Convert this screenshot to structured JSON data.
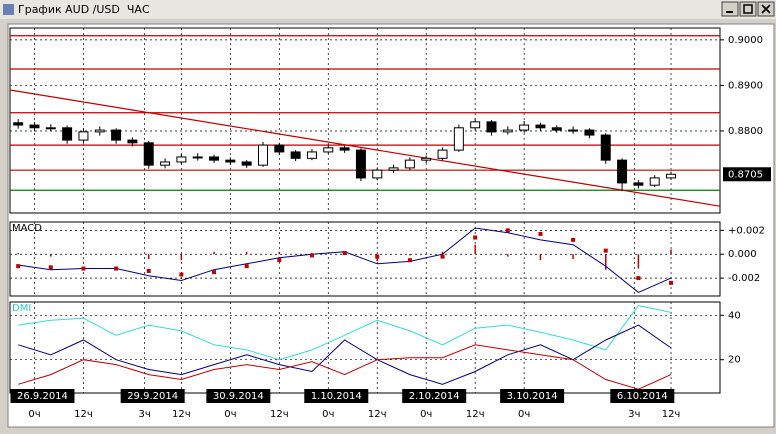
{
  "window_title": "График AUD /USD  ЧАС",
  "chart_data": [
    {
      "type": "candlestick",
      "xlim": [
        -6,
        168
      ],
      "ylim": [
        0.862,
        0.9026
      ],
      "yticks": [
        {
          "value": 0.9,
          "label": "0.9000"
        },
        {
          "value": 0.89,
          "label": "0.8900"
        },
        {
          "value": 0.88,
          "label": "0.8800"
        }
      ],
      "last_price": {
        "value": 0.8705,
        "label": "0.8705"
      },
      "levels": [
        {
          "value": 0.9009,
          "color": "#c00000"
        },
        {
          "value": 0.8936,
          "color": "#c00000"
        },
        {
          "value": 0.884,
          "color": "#c00000"
        },
        {
          "value": 0.8769,
          "color": "#c00000"
        },
        {
          "value": 0.8714,
          "color": "#c00000"
        },
        {
          "value": 0.867,
          "color": "#008000"
        }
      ],
      "trendline": {
        "color": "#c00000",
        "x": [
          -6,
          168
        ],
        "y": [
          0.889,
          0.8635
        ]
      },
      "x": [
        -4,
        0,
        4,
        8,
        12,
        16,
        20,
        24,
        28,
        32,
        36,
        40,
        44,
        48,
        52,
        56,
        60,
        64,
        68,
        72,
        76,
        80,
        84,
        88,
        92,
        96,
        100,
        104,
        108,
        112,
        116,
        120,
        124,
        128,
        132,
        136,
        140,
        144,
        148,
        152,
        156
      ],
      "open": [
        0.8818,
        0.8813,
        0.8807,
        0.8807,
        0.878,
        0.8798,
        0.8802,
        0.878,
        0.8774,
        0.8725,
        0.8732,
        0.8743,
        0.8743,
        0.8736,
        0.8732,
        0.8725,
        0.8769,
        0.8754,
        0.874,
        0.8754,
        0.8763,
        0.8758,
        0.8697,
        0.8714,
        0.8719,
        0.8736,
        0.874,
        0.8758,
        0.8807,
        0.882,
        0.8798,
        0.8802,
        0.8813,
        0.8807,
        0.8802,
        0.8802,
        0.8791,
        0.8736,
        0.8686,
        0.8681,
        0.8697
      ],
      "high": [
        0.8826,
        0.882,
        0.8815,
        0.8812,
        0.8806,
        0.881,
        0.8806,
        0.8786,
        0.8778,
        0.874,
        0.875,
        0.8751,
        0.8748,
        0.8742,
        0.8736,
        0.8776,
        0.8774,
        0.8758,
        0.876,
        0.877,
        0.8768,
        0.8762,
        0.872,
        0.8726,
        0.8742,
        0.8746,
        0.8764,
        0.8814,
        0.8828,
        0.8824,
        0.881,
        0.8822,
        0.8818,
        0.8812,
        0.881,
        0.8806,
        0.8795,
        0.874,
        0.8692,
        0.8703,
        0.8711
      ],
      "low": [
        0.8805,
        0.8799,
        0.8799,
        0.8772,
        0.8774,
        0.879,
        0.8772,
        0.8766,
        0.8717,
        0.8718,
        0.8726,
        0.8735,
        0.873,
        0.8726,
        0.8719,
        0.8721,
        0.8748,
        0.8734,
        0.8736,
        0.875,
        0.8752,
        0.869,
        0.8692,
        0.8708,
        0.8714,
        0.873,
        0.8736,
        0.8754,
        0.8801,
        0.879,
        0.8792,
        0.8796,
        0.88,
        0.8796,
        0.8794,
        0.8784,
        0.8728,
        0.8668,
        0.8674,
        0.8677,
        0.8693
      ],
      "close": [
        0.8813,
        0.8807,
        0.8807,
        0.878,
        0.8798,
        0.8802,
        0.878,
        0.8774,
        0.8725,
        0.8732,
        0.8743,
        0.8743,
        0.8736,
        0.8732,
        0.8725,
        0.8769,
        0.8754,
        0.874,
        0.8754,
        0.8763,
        0.8758,
        0.8697,
        0.8714,
        0.8719,
        0.8736,
        0.874,
        0.8758,
        0.8807,
        0.882,
        0.8798,
        0.8802,
        0.8813,
        0.8807,
        0.8802,
        0.8802,
        0.8791,
        0.8736,
        0.8686,
        0.8681,
        0.8697,
        0.8705
      ]
    },
    {
      "type": "line",
      "label": "MACD",
      "label_color": "#000000",
      "xlim": [
        -6,
        168
      ],
      "ylim": [
        -0.0035,
        0.0027
      ],
      "yticks": [
        {
          "value": 0.002,
          "label": "+0.002"
        },
        {
          "value": 0,
          "label": "0.000"
        },
        {
          "value": -0.002,
          "label": "-0.002"
        }
      ],
      "x": [
        -4,
        4,
        12,
        20,
        28,
        36,
        44,
        52,
        60,
        68,
        76,
        84,
        92,
        100,
        108,
        116,
        124,
        132,
        140,
        148,
        156
      ],
      "series": [
        {
          "style": "bars",
          "color": "#c00000",
          "values": [
            0.0001,
            -0.0002,
            0,
            0,
            -0.0004,
            -0.0005,
            0.0002,
            0.0002,
            0.0002,
            0.0001,
            0.0001,
            -0.0006,
            -0.0001,
            0.0002,
            0.0008,
            -0.0002,
            -0.0005,
            -0.0004,
            -0.0013,
            -0.0012,
            0.0004
          ]
        },
        {
          "style": "line",
          "color": "#000080",
          "values": [
            -0.0009,
            -0.0013,
            -0.0012,
            -0.0012,
            -0.0018,
            -0.0022,
            -0.0013,
            -0.0008,
            -0.0003,
            0,
            0.0002,
            -0.0008,
            -0.0006,
            0,
            0.0022,
            0.0018,
            0.0012,
            0.0008,
            -0.001,
            -0.0032,
            -0.002
          ]
        },
        {
          "style": "dots",
          "color": "#c00000",
          "values": [
            -0.001,
            -0.0011,
            -0.0012,
            -0.0012,
            -0.0014,
            -0.0017,
            -0.0015,
            -0.001,
            -0.0005,
            -0.0001,
            0.0001,
            -0.0002,
            -0.0005,
            -0.0002,
            0.0014,
            0.002,
            0.0017,
            0.0012,
            0.0003,
            -0.002,
            -0.0024
          ]
        }
      ]
    },
    {
      "type": "line",
      "label": "DMI",
      "label_color": "#33cccc",
      "xlim": [
        -6,
        168
      ],
      "ylim": [
        5,
        46
      ],
      "yticks": [
        40,
        20
      ],
      "x": [
        -4,
        4,
        12,
        20,
        28,
        36,
        44,
        52,
        60,
        68,
        76,
        84,
        92,
        100,
        108,
        116,
        124,
        132,
        140,
        148,
        156
      ],
      "series": [
        {
          "style": "line",
          "color": "#33dddd",
          "values": [
            35.6,
            37.8,
            38.7,
            31,
            35.6,
            33,
            26.7,
            24.4,
            20,
            24.4,
            31,
            37.8,
            33,
            26.7,
            34.2,
            35.6,
            32.4,
            28.9,
            24.4,
            44.4,
            41.3
          ]
        },
        {
          "style": "line",
          "color": "#000080",
          "values": [
            26.7,
            22.2,
            28.9,
            20,
            15.6,
            13.3,
            17.8,
            22.2,
            17.8,
            14.7,
            28.9,
            20,
            13.3,
            8.9,
            14.7,
            22.2,
            26.7,
            20,
            28.9,
            35.6,
            25.3
          ]
        },
        {
          "style": "line",
          "color": "#c00000",
          "values": [
            8.9,
            13.3,
            20,
            17.8,
            13.3,
            11.1,
            15.6,
            17.8,
            15.6,
            19.1,
            13.3,
            20,
            20.9,
            20.9,
            26.7,
            24.4,
            22.2,
            20,
            11.1,
            6.7,
            13.3
          ]
        }
      ],
      "xticks": [
        {
          "value": 0,
          "label": "0ч"
        },
        {
          "value": 12,
          "label": "12ч"
        },
        {
          "value": 27,
          "label": "3ч"
        },
        {
          "value": 36,
          "label": "12ч"
        },
        {
          "value": 48,
          "label": "0ч"
        },
        {
          "value": 60,
          "label": "12ч"
        },
        {
          "value": 72,
          "label": "0ч"
        },
        {
          "value": 84,
          "label": "12ч"
        },
        {
          "value": 96,
          "label": "0ч"
        },
        {
          "value": 108,
          "label": "12ч"
        },
        {
          "value": 120,
          "label": "0ч"
        },
        {
          "value": 147,
          "label": "3ч"
        },
        {
          "value": 156,
          "label": "12ч"
        }
      ],
      "date_labels": [
        {
          "value": 0,
          "label": "26.9.2014"
        },
        {
          "value": 27,
          "label": "29.9.2014"
        },
        {
          "value": 48,
          "label": "30.9.2014"
        },
        {
          "value": 72,
          "label": "1.10.2014"
        },
        {
          "value": 96,
          "label": "2.10.2014"
        },
        {
          "value": 120,
          "label": "3.10.2014"
        },
        {
          "value": 147,
          "label": "6.10.2014"
        }
      ]
    }
  ]
}
